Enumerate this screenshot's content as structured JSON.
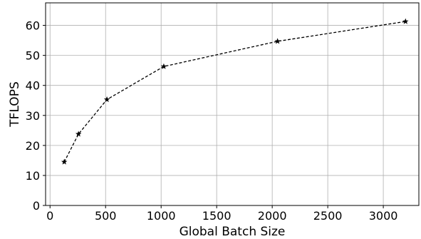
{
  "chart_data": {
    "type": "line",
    "title": "",
    "xlabel": "Global Batch Size",
    "ylabel": "TFLOPS",
    "xlim": [
      -40,
      3320
    ],
    "ylim": [
      0,
      67.5
    ],
    "xticks": [
      0,
      500,
      1000,
      1500,
      2000,
      2500,
      3000
    ],
    "yticks": [
      0,
      10,
      20,
      30,
      40,
      50,
      60
    ],
    "grid": true,
    "legend": "none",
    "series": [
      {
        "x": [
          128,
          256,
          512,
          1024,
          2048,
          3200
        ],
        "y": [
          14.5,
          23.8,
          35.3,
          46.3,
          54.7,
          61.3
        ],
        "color": "#000000",
        "line_style": "dashed",
        "marker": "star"
      }
    ]
  }
}
